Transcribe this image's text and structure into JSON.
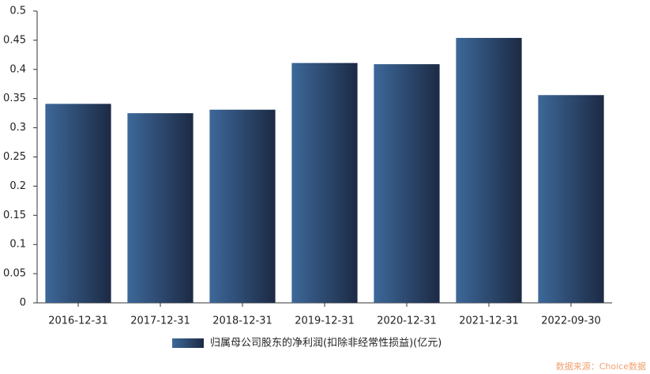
{
  "chart_data": {
    "type": "bar",
    "categories": [
      "2016-12-31",
      "2017-12-31",
      "2018-12-31",
      "2019-12-31",
      "2020-12-31",
      "2021-12-31",
      "2022-09-30"
    ],
    "series": [
      {
        "name": "归属母公司股东的净利润(扣除非经常性损益)(亿元)",
        "color": "#2c4870",
        "values": [
          0.341,
          0.325,
          0.331,
          0.411,
          0.409,
          0.454,
          0.356
        ]
      }
    ],
    "gradient": [
      "#3d6899",
      "#1c2a44"
    ],
    "ylim": [
      0,
      0.5
    ],
    "yticks": [
      0,
      0.05,
      0.1,
      0.15,
      0.2,
      0.25,
      0.3,
      0.35,
      0.4,
      0.45,
      0.5
    ],
    "grid": false,
    "legend": "bottom",
    "source": "数据来源：Choice数据"
  }
}
